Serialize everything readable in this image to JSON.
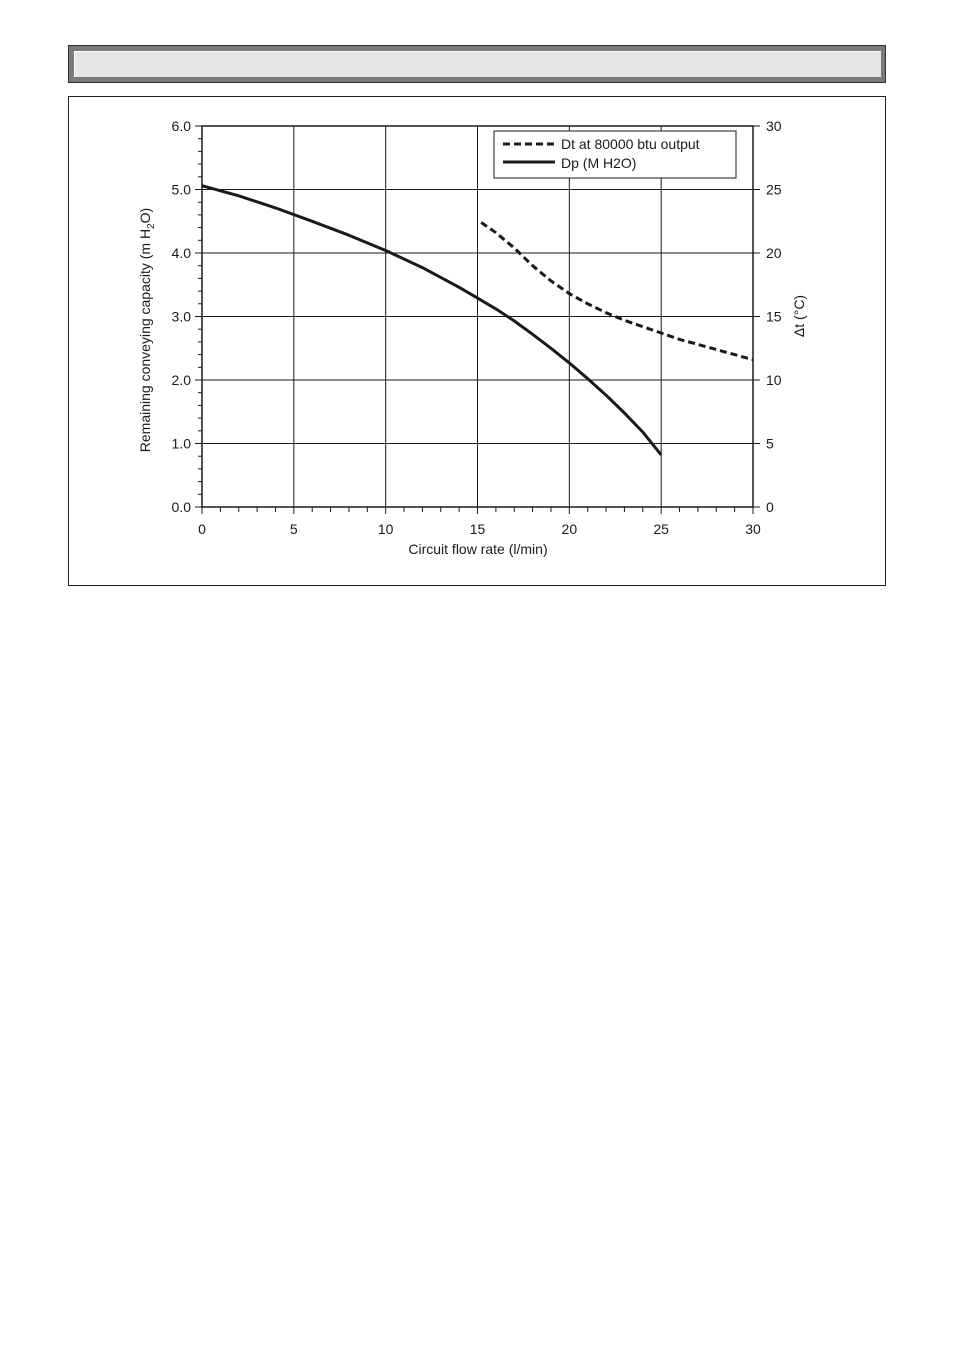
{
  "chart_data": {
    "type": "line",
    "xlabel": "Circuit flow rate (l/min)",
    "ylabel_left": "Remaining conveying capacity (m H",
    "ylabel_left_sub": "2",
    "ylabel_left_end": "O)",
    "ylabel_right": "Δt (°C)",
    "xlim": [
      0,
      30
    ],
    "ylim_left": [
      0,
      6
    ],
    "ylim_right": [
      0,
      30
    ],
    "x_ticks": [
      "0",
      "5",
      "10",
      "15",
      "20",
      "25",
      "30"
    ],
    "y_left_ticks": [
      "0.0",
      "1.0",
      "2.0",
      "3.0",
      "4.0",
      "5.0",
      "6.0"
    ],
    "y_right_ticks": [
      "0",
      "5",
      "10",
      "15",
      "20",
      "25",
      "30"
    ],
    "grid": true,
    "legend_position": "top-right",
    "series": [
      {
        "name": "Dt at 80000 btu output",
        "axis": "right",
        "style": "dashed",
        "x": [
          15.2,
          16.0,
          17.0,
          18.0,
          19.0,
          20.0,
          21.0,
          22.0,
          23.0,
          24.0,
          25.0,
          26.0,
          27.0,
          28.0,
          29.0,
          30.0
        ],
        "y": [
          22.4,
          21.6,
          20.4,
          19.0,
          17.8,
          16.8,
          16.0,
          15.3,
          14.7,
          14.2,
          13.7,
          13.2,
          12.8,
          12.4,
          12.0,
          11.6
        ]
      },
      {
        "name": "Dp (M H2O)",
        "axis": "left",
        "style": "solid",
        "x": [
          0,
          2,
          4,
          6,
          8,
          10,
          12,
          14,
          15,
          16,
          17,
          18,
          19,
          20,
          21,
          22,
          23,
          24,
          25
        ],
        "y": [
          5.06,
          4.9,
          4.71,
          4.5,
          4.28,
          4.04,
          3.77,
          3.46,
          3.29,
          3.12,
          2.93,
          2.72,
          2.5,
          2.27,
          2.02,
          1.76,
          1.48,
          1.18,
          0.82
        ]
      }
    ]
  }
}
